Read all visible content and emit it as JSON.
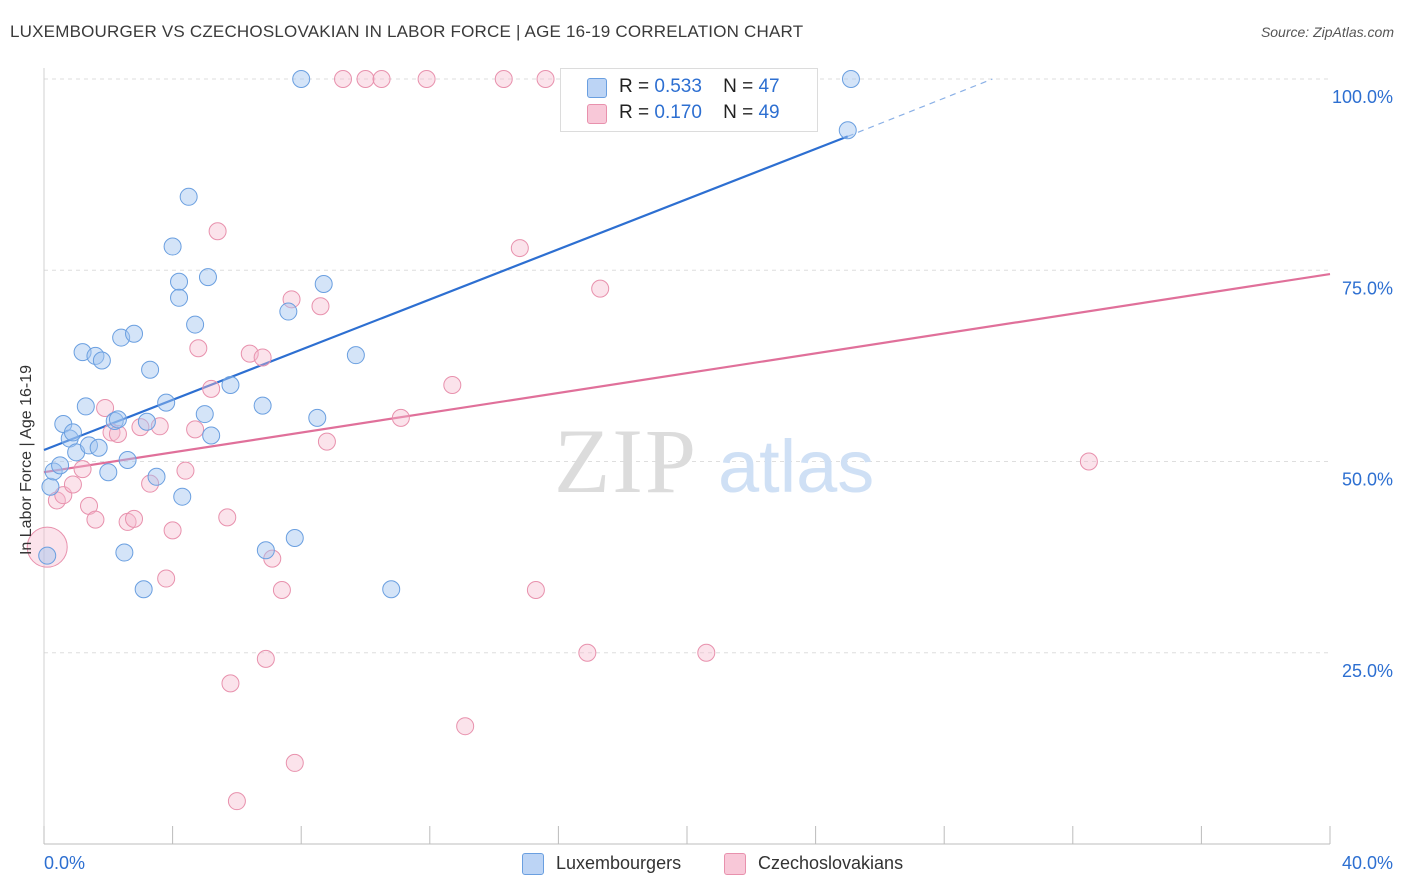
{
  "title": "LUXEMBOURGER VS CZECHOSLOVAKIAN IN LABOR FORCE | AGE 16-19 CORRELATION CHART",
  "source": "Source: ZipAtlas.com",
  "watermark": {
    "zip": "ZIP",
    "atlas": "atlas"
  },
  "legend": {
    "luxembourgers": {
      "r_label": "R =",
      "r_value": "0.533",
      "n_label": "N =",
      "n_value": "47"
    },
    "czechoslovakians": {
      "r_label": "R =",
      "r_value": "0.170",
      "n_label": "N =",
      "n_value": "49"
    }
  },
  "chart_data": {
    "type": "scatter",
    "ylabel": "In Labor Force | Age 16-19",
    "x_tick_labels": [
      "0.0%",
      "40.0%"
    ],
    "y_tick_labels": [
      "25.0%",
      "50.0%",
      "75.0%",
      "100.0%"
    ],
    "xlim": [
      0,
      40
    ],
    "ylim": [
      0,
      100
    ],
    "grid": true,
    "colors": {
      "luxembourgers": "#6a9fe0",
      "czechoslovakians": "#e891ad",
      "lux_line": "#2d6fd1",
      "czech_line": "#e0709a"
    },
    "series": [
      {
        "name": "Luxembourgers",
        "points": [
          [
            0.1,
            37.7
          ],
          [
            0.2,
            46.7
          ],
          [
            0.3,
            48.7
          ],
          [
            0.5,
            49.5
          ],
          [
            0.6,
            54.9
          ],
          [
            0.8,
            53.0
          ],
          [
            0.9,
            53.8
          ],
          [
            1.0,
            51.2
          ],
          [
            1.2,
            64.3
          ],
          [
            1.3,
            57.2
          ],
          [
            1.4,
            52.1
          ],
          [
            1.6,
            63.8
          ],
          [
            1.7,
            51.8
          ],
          [
            1.8,
            63.2
          ],
          [
            2.0,
            48.6
          ],
          [
            2.2,
            55.3
          ],
          [
            2.3,
            55.5
          ],
          [
            2.4,
            66.2
          ],
          [
            2.5,
            38.1
          ],
          [
            2.6,
            50.2
          ],
          [
            2.8,
            66.7
          ],
          [
            3.1,
            33.3
          ],
          [
            3.2,
            55.2
          ],
          [
            3.3,
            62.0
          ],
          [
            3.5,
            48.0
          ],
          [
            3.8,
            57.7
          ],
          [
            4.0,
            78.1
          ],
          [
            4.2,
            73.5
          ],
          [
            4.2,
            71.4
          ],
          [
            4.3,
            45.4
          ],
          [
            4.5,
            84.6
          ],
          [
            4.7,
            67.9
          ],
          [
            5.0,
            56.2
          ],
          [
            5.1,
            74.1
          ],
          [
            5.2,
            53.4
          ],
          [
            5.8,
            60.0
          ],
          [
            6.8,
            57.3
          ],
          [
            6.9,
            38.4
          ],
          [
            7.6,
            69.6
          ],
          [
            7.8,
            40.0
          ],
          [
            8.0,
            100.0
          ],
          [
            8.5,
            55.7
          ],
          [
            8.7,
            73.2
          ],
          [
            9.7,
            63.9
          ],
          [
            10.8,
            33.3
          ],
          [
            25.0,
            93.3
          ],
          [
            25.1,
            100.0
          ]
        ]
      },
      {
        "name": "Czechoslovakians",
        "points": [
          [
            0.1,
            38.8
          ],
          [
            0.4,
            44.9
          ],
          [
            0.6,
            45.6
          ],
          [
            0.9,
            47.0
          ],
          [
            1.2,
            49.0
          ],
          [
            1.4,
            44.2
          ],
          [
            1.6,
            42.4
          ],
          [
            1.9,
            57.0
          ],
          [
            2.1,
            53.8
          ],
          [
            2.3,
            53.6
          ],
          [
            2.6,
            42.1
          ],
          [
            2.8,
            42.5
          ],
          [
            3.0,
            54.5
          ],
          [
            3.3,
            47.1
          ],
          [
            3.6,
            54.6
          ],
          [
            3.8,
            34.7
          ],
          [
            4.0,
            41.0
          ],
          [
            4.4,
            48.8
          ],
          [
            4.7,
            54.2
          ],
          [
            4.8,
            64.8
          ],
          [
            5.2,
            59.5
          ],
          [
            5.4,
            80.1
          ],
          [
            5.7,
            42.7
          ],
          [
            5.8,
            21.0
          ],
          [
            6.0,
            5.6
          ],
          [
            6.4,
            64.1
          ],
          [
            6.8,
            63.6
          ],
          [
            6.9,
            24.2
          ],
          [
            7.1,
            37.3
          ],
          [
            7.4,
            33.2
          ],
          [
            7.7,
            71.2
          ],
          [
            7.8,
            10.6
          ],
          [
            8.6,
            70.3
          ],
          [
            8.8,
            52.6
          ],
          [
            9.3,
            100.0
          ],
          [
            10.0,
            100.0
          ],
          [
            10.5,
            100.0
          ],
          [
            11.1,
            55.7
          ],
          [
            11.9,
            100.0
          ],
          [
            12.7,
            60.0
          ],
          [
            13.1,
            15.4
          ],
          [
            14.3,
            100.0
          ],
          [
            14.8,
            77.9
          ],
          [
            15.3,
            33.2
          ],
          [
            15.6,
            100.0
          ],
          [
            16.9,
            25.0
          ],
          [
            17.3,
            72.6
          ],
          [
            20.6,
            25.0
          ],
          [
            32.5,
            50.0
          ]
        ]
      }
    ],
    "trendlines": [
      {
        "name": "Luxembourgers",
        "x": [
          0,
          25.0
        ],
        "y": [
          51.5,
          92.5
        ],
        "dashed_extension_x": [
          25.0,
          29.5
        ],
        "dashed_extension_y": [
          92.5,
          100.0
        ]
      },
      {
        "name": "Czechoslovakians",
        "x": [
          0,
          40
        ],
        "y": [
          48.6,
          74.5
        ]
      }
    ]
  }
}
